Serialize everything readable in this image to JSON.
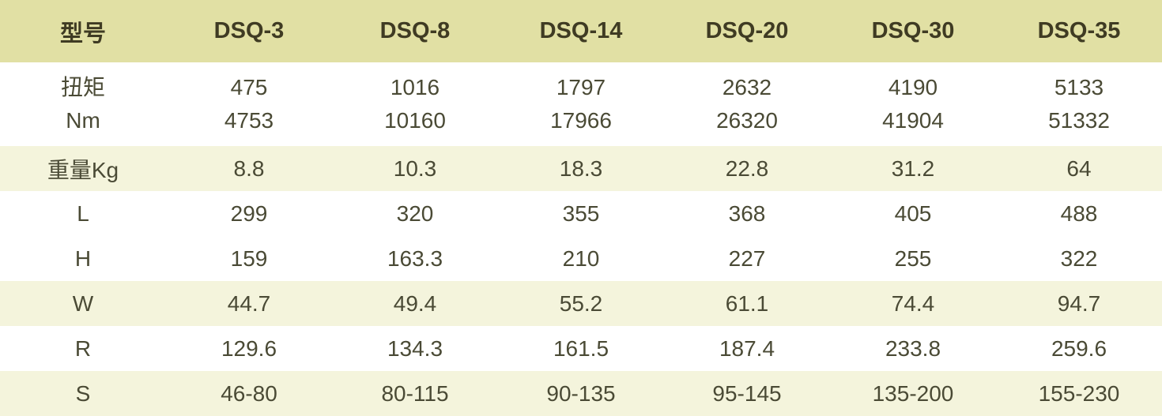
{
  "table": {
    "header": {
      "label": "型号",
      "models": [
        "DSQ-3",
        "DSQ-8",
        "DSQ-14",
        "DSQ-20",
        "DSQ-30",
        "DSQ-35"
      ]
    },
    "torque": {
      "label_line1": "扭矩",
      "label_line2": "Nm",
      "values_line1": [
        "475",
        "1016",
        "1797",
        "2632",
        "4190",
        "5133"
      ],
      "values_line2": [
        "4753",
        "10160",
        "17966",
        "26320",
        "41904",
        "51332"
      ]
    },
    "rows": [
      {
        "label": "重量Kg",
        "values": [
          "8.8",
          "10.3",
          "18.3",
          "22.8",
          "31.2",
          "64"
        ]
      },
      {
        "label": "L",
        "values": [
          "299",
          "320",
          "355",
          "368",
          "405",
          "488"
        ]
      },
      {
        "label": "H",
        "values": [
          "159",
          "163.3",
          "210",
          "227",
          "255",
          "322"
        ]
      },
      {
        "label": "W",
        "values": [
          "44.7",
          "49.4",
          "55.2",
          "61.1",
          "74.4",
          "94.7"
        ]
      },
      {
        "label": "R",
        "values": [
          "129.6",
          "134.3",
          "161.5",
          "187.4",
          "233.8",
          "259.6"
        ]
      },
      {
        "label": "S",
        "values": [
          "46-80",
          "80-115",
          "90-135",
          "95-145",
          "135-200",
          "155-230"
        ]
      }
    ]
  },
  "colors": {
    "header_bg": "#e1e0a4",
    "shade_bg": "#f4f4dc",
    "text": "#4a4a35"
  }
}
